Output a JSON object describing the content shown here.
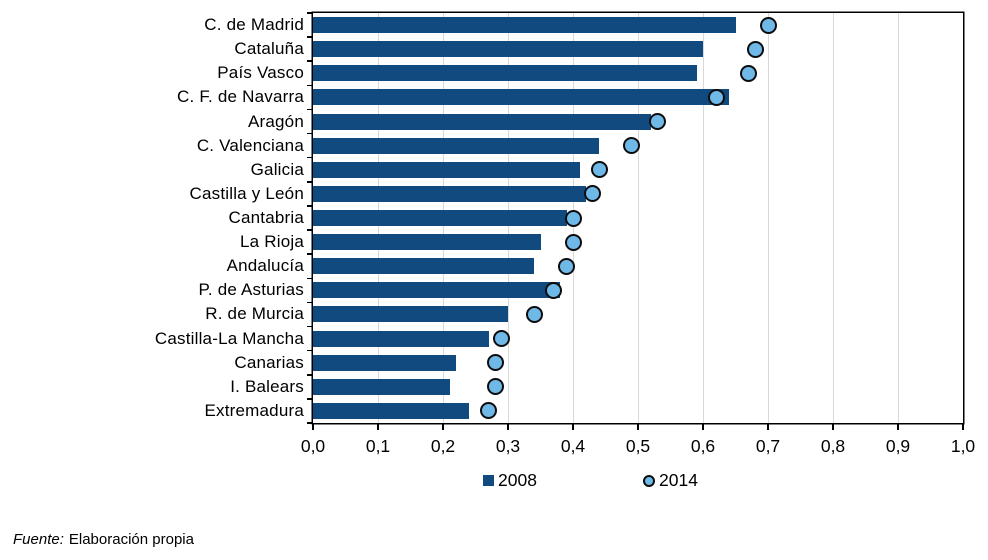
{
  "chart_data": {
    "type": "bar",
    "orientation": "horizontal",
    "title": "",
    "xlabel": "",
    "ylabel": "",
    "xlim": [
      0,
      1
    ],
    "grid": "vertical",
    "legend_position": "bottom",
    "categories": [
      "C. de Madrid",
      "Cataluña",
      "País Vasco",
      "C. F. de Navarra",
      "Aragón",
      "C. Valenciana",
      "Galicia",
      "Castilla y León",
      "Cantabria",
      "La Rioja",
      "Andalucía",
      "P. de Asturias",
      "R. de Murcia",
      "Castilla-La Mancha",
      "Canarias",
      "I. Balears",
      "Extremadura"
    ],
    "series": [
      {
        "name": "2008",
        "marker": "bar",
        "color": "#114a7e",
        "values": [
          0.65,
          0.6,
          0.59,
          0.64,
          0.52,
          0.44,
          0.41,
          0.42,
          0.39,
          0.35,
          0.34,
          0.38,
          0.3,
          0.27,
          0.22,
          0.21,
          0.24
        ]
      },
      {
        "name": "2014",
        "marker": "dot",
        "color": "#6fb9e9",
        "values": [
          0.7,
          0.68,
          0.67,
          0.62,
          0.53,
          0.49,
          0.44,
          0.43,
          0.4,
          0.4,
          0.39,
          0.37,
          0.34,
          0.29,
          0.28,
          0.28,
          0.27
        ]
      }
    ],
    "x_tick_values": [
      0,
      0.1,
      0.2,
      0.3,
      0.4,
      0.5,
      0.6,
      0.7,
      0.8,
      0.9,
      1.0
    ],
    "x_tick_labels": [
      "0,0",
      "0,1",
      "0,2",
      "0,3",
      "0,4",
      "0,5",
      "0,6",
      "0,7",
      "0,8",
      "0,9",
      "1,0"
    ],
    "grid_color": "#d9d9d9",
    "axis_color": "#000000"
  },
  "legend": {
    "items": [
      {
        "label": "2008",
        "swatch": "square-icon"
      },
      {
        "label": "2014",
        "swatch": "circle-icon"
      }
    ]
  },
  "footer": {
    "source_label": "Fuente:",
    "source_text": "Elaboración propia"
  }
}
